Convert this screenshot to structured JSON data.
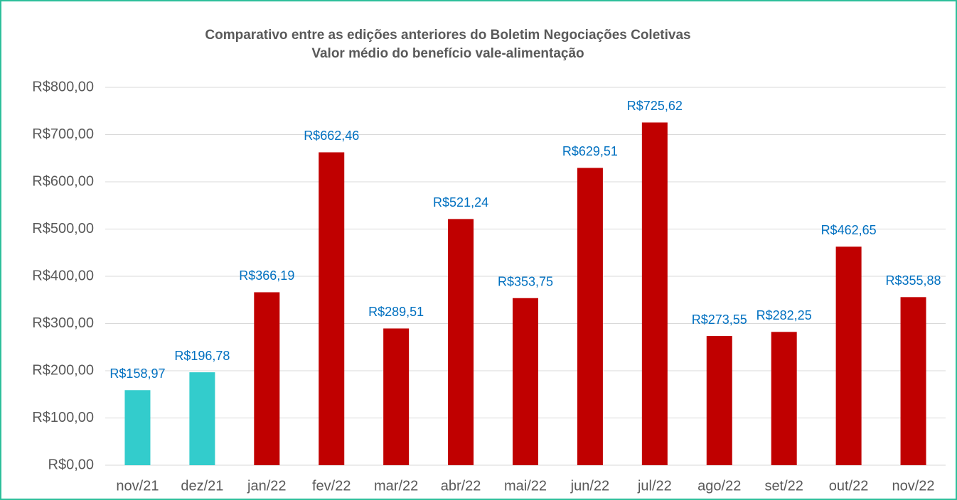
{
  "chart_data": {
    "type": "bar",
    "title": "Comparativo entre as edições anteriores do Boletim Negociações Coletivas",
    "subtitle": "Valor médio do benefício vale-alimentação",
    "categories": [
      "nov/21",
      "dez/21",
      "jan/22",
      "fev/22",
      "mar/22",
      "abr/22",
      "mai/22",
      "jun/22",
      "jul/22",
      "ago/22",
      "set/22",
      "out/22",
      "nov/22"
    ],
    "values": [
      158.97,
      196.78,
      366.19,
      662.46,
      289.51,
      521.24,
      353.75,
      629.51,
      725.62,
      273.55,
      282.25,
      462.65,
      355.88
    ],
    "value_labels": [
      "R$158,97",
      "R$196,78",
      "R$366,19",
      "R$662,46",
      "R$289,51",
      "R$521,24",
      "R$353,75",
      "R$629,51",
      "R$725,62",
      "R$273,55",
      "R$282,25",
      "R$462,65",
      "R$355,88"
    ],
    "colors": [
      "#33cccc",
      "#33cccc",
      "#c00000",
      "#c00000",
      "#c00000",
      "#c00000",
      "#c00000",
      "#c00000",
      "#c00000",
      "#c00000",
      "#c00000",
      "#c00000",
      "#c00000"
    ],
    "ylim": [
      0,
      800
    ],
    "yticks": [
      {
        "value": 0,
        "label": "R$0,00"
      },
      {
        "value": 100,
        "label": "R$100,00"
      },
      {
        "value": 200,
        "label": "R$200,00"
      },
      {
        "value": 300,
        "label": "R$300,00"
      },
      {
        "value": 400,
        "label": "R$400,00"
      },
      {
        "value": 500,
        "label": "R$500,00"
      },
      {
        "value": 600,
        "label": "R$600,00"
      },
      {
        "value": 700,
        "label": "R$700,00"
      },
      {
        "value": 800,
        "label": "R$800,00"
      }
    ],
    "grid": true
  }
}
